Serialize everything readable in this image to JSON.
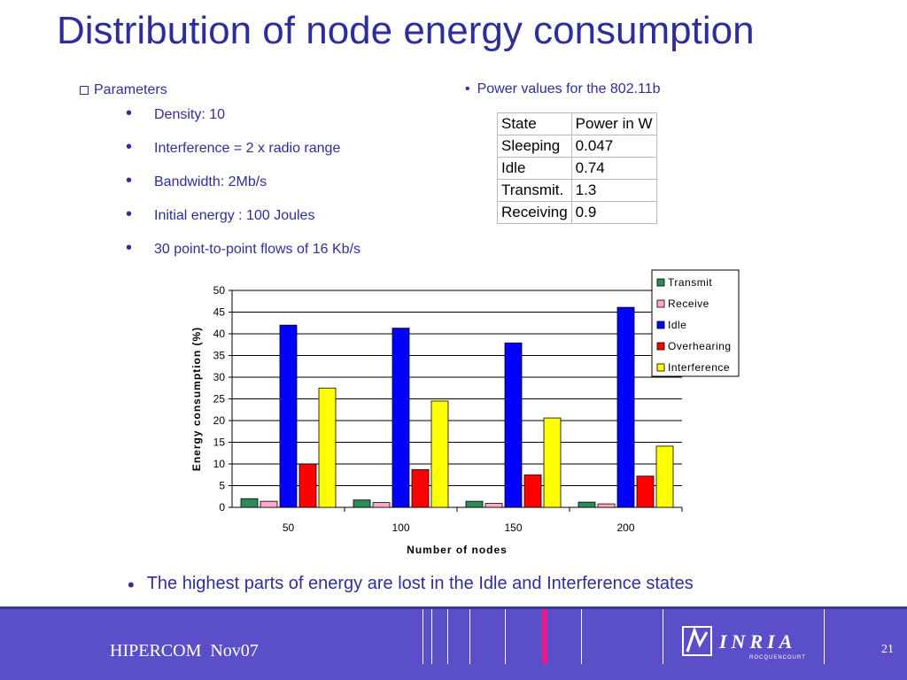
{
  "title": "Distribution of node energy consumption",
  "parameters": {
    "heading": "Parameters",
    "items": [
      "Density: 10",
      "Interference = 2 x radio range",
      "Bandwidth: 2Mb/s",
      "Initial energy : 100 Joules",
      "30 point-to-point flows of 16 Kb/s"
    ]
  },
  "power": {
    "heading": "Power values for the 802.11b",
    "header": [
      "State",
      "Power in W"
    ],
    "rows": [
      [
        "Sleeping",
        "0.047"
      ],
      [
        "Idle",
        "0.74"
      ],
      [
        "Transmit.",
        "1.3"
      ],
      [
        "Receiving",
        "0.9"
      ]
    ]
  },
  "chart_data": {
    "type": "bar",
    "categories": [
      "50",
      "100",
      "150",
      "200"
    ],
    "series": [
      {
        "name": "Transmit",
        "color": "#2e8b57",
        "values": [
          2.0,
          1.7,
          1.4,
          1.2
        ]
      },
      {
        "name": "Receive",
        "color": "#ffaacc",
        "values": [
          1.4,
          1.1,
          0.9,
          0.8
        ]
      },
      {
        "name": "Idle",
        "color": "#0000ff",
        "values": [
          42.0,
          41.3,
          37.9,
          46.1
        ]
      },
      {
        "name": "Overhearing",
        "color": "#ff0000",
        "values": [
          10.0,
          8.7,
          7.5,
          7.2
        ]
      },
      {
        "name": "Interference",
        "color": "#ffff00",
        "values": [
          27.5,
          24.5,
          20.6,
          14.1
        ]
      }
    ],
    "xlabel": "Number of nodes",
    "ylabel": "Energy consumption (%)",
    "ylim": [
      0,
      50
    ],
    "yticks": [
      0,
      5,
      10,
      15,
      20,
      25,
      30,
      35,
      40,
      45,
      50
    ],
    "grid": true,
    "legend": "top-right"
  },
  "conclusion": "The highest parts of energy are lost in the Idle and Interference states",
  "footer": {
    "label": "HIPERCOM  Nov07",
    "page": "21",
    "logo_text": "INRIA",
    "logo_subtext": "ROCQUENCOURT"
  }
}
